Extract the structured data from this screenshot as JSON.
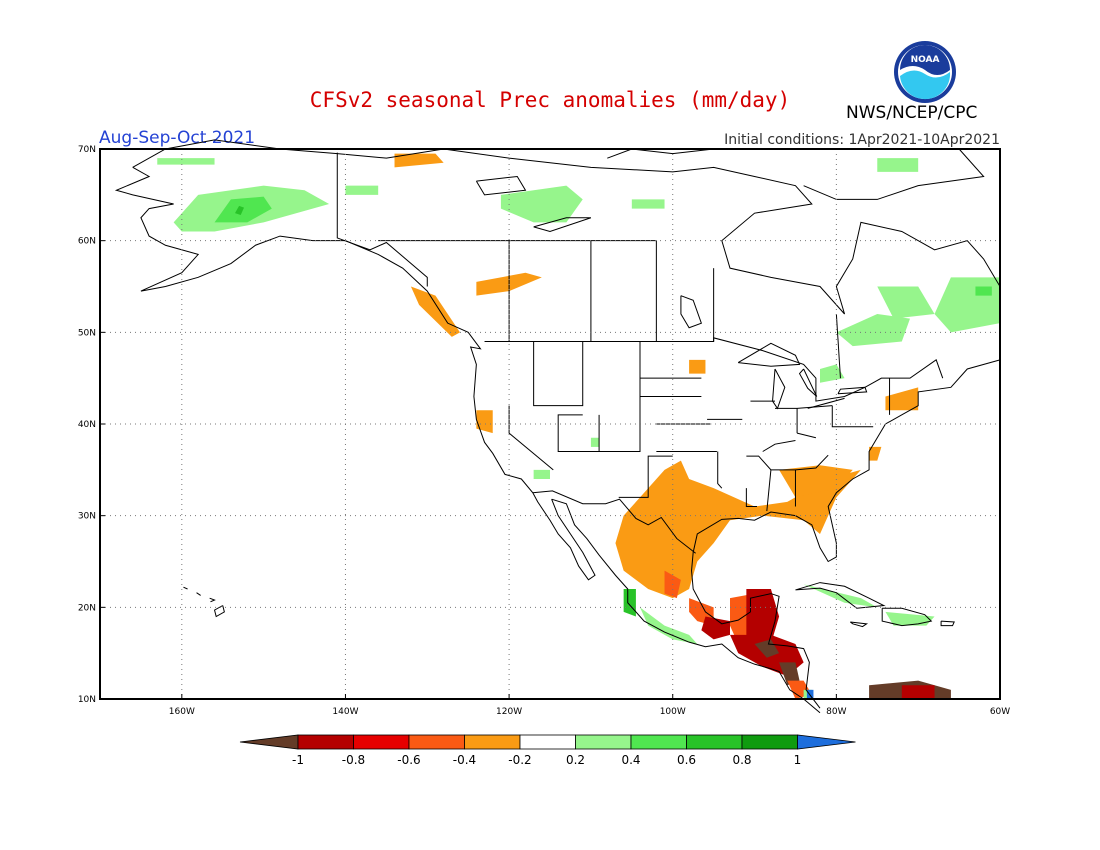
{
  "header": {
    "title": "CFSv2 seasonal Prec anomalies (mm/day)",
    "period": "Aug-Sep-Oct 2021",
    "initial_conditions": "Initial conditions: 1Apr2021-10Apr2021",
    "org": "NWS/NCEP/CPC",
    "logo_text": "NOAA"
  },
  "map": {
    "lat_labels": [
      "70N",
      "60N",
      "50N",
      "40N",
      "30N",
      "20N",
      "10N"
    ],
    "lon_labels": [
      "160W",
      "140W",
      "120W",
      "100W",
      "80W",
      "60W"
    ],
    "lon_range": [
      -170,
      -60
    ],
    "lat_range": [
      10,
      70
    ]
  },
  "colorbar": {
    "labels": [
      "-1",
      "-0.8",
      "-0.6",
      "-0.4",
      "-0.2",
      "0.2",
      "0.4",
      "0.6",
      "0.8",
      "1"
    ],
    "colors": [
      "#643c28",
      "#b40000",
      "#e60000",
      "#fa5a14",
      "#fa9b14",
      "#ffffff",
      "#96f58c",
      "#50e650",
      "#28c328",
      "#0f9b0f",
      "#1e6edc"
    ]
  },
  "anomalies": {
    "colors": {
      "dry_strong": "#643c28",
      "dry_very": "#b40000",
      "dry": "#e62d00",
      "dry_mod": "#fa5a14",
      "dry_weak": "#fa9b14",
      "wet_weak": "#96f58c",
      "wet_mod": "#50e650",
      "wet": "#28c328",
      "wet_strong": "#0f9b0f",
      "wet_very": "#1e6edc"
    }
  }
}
